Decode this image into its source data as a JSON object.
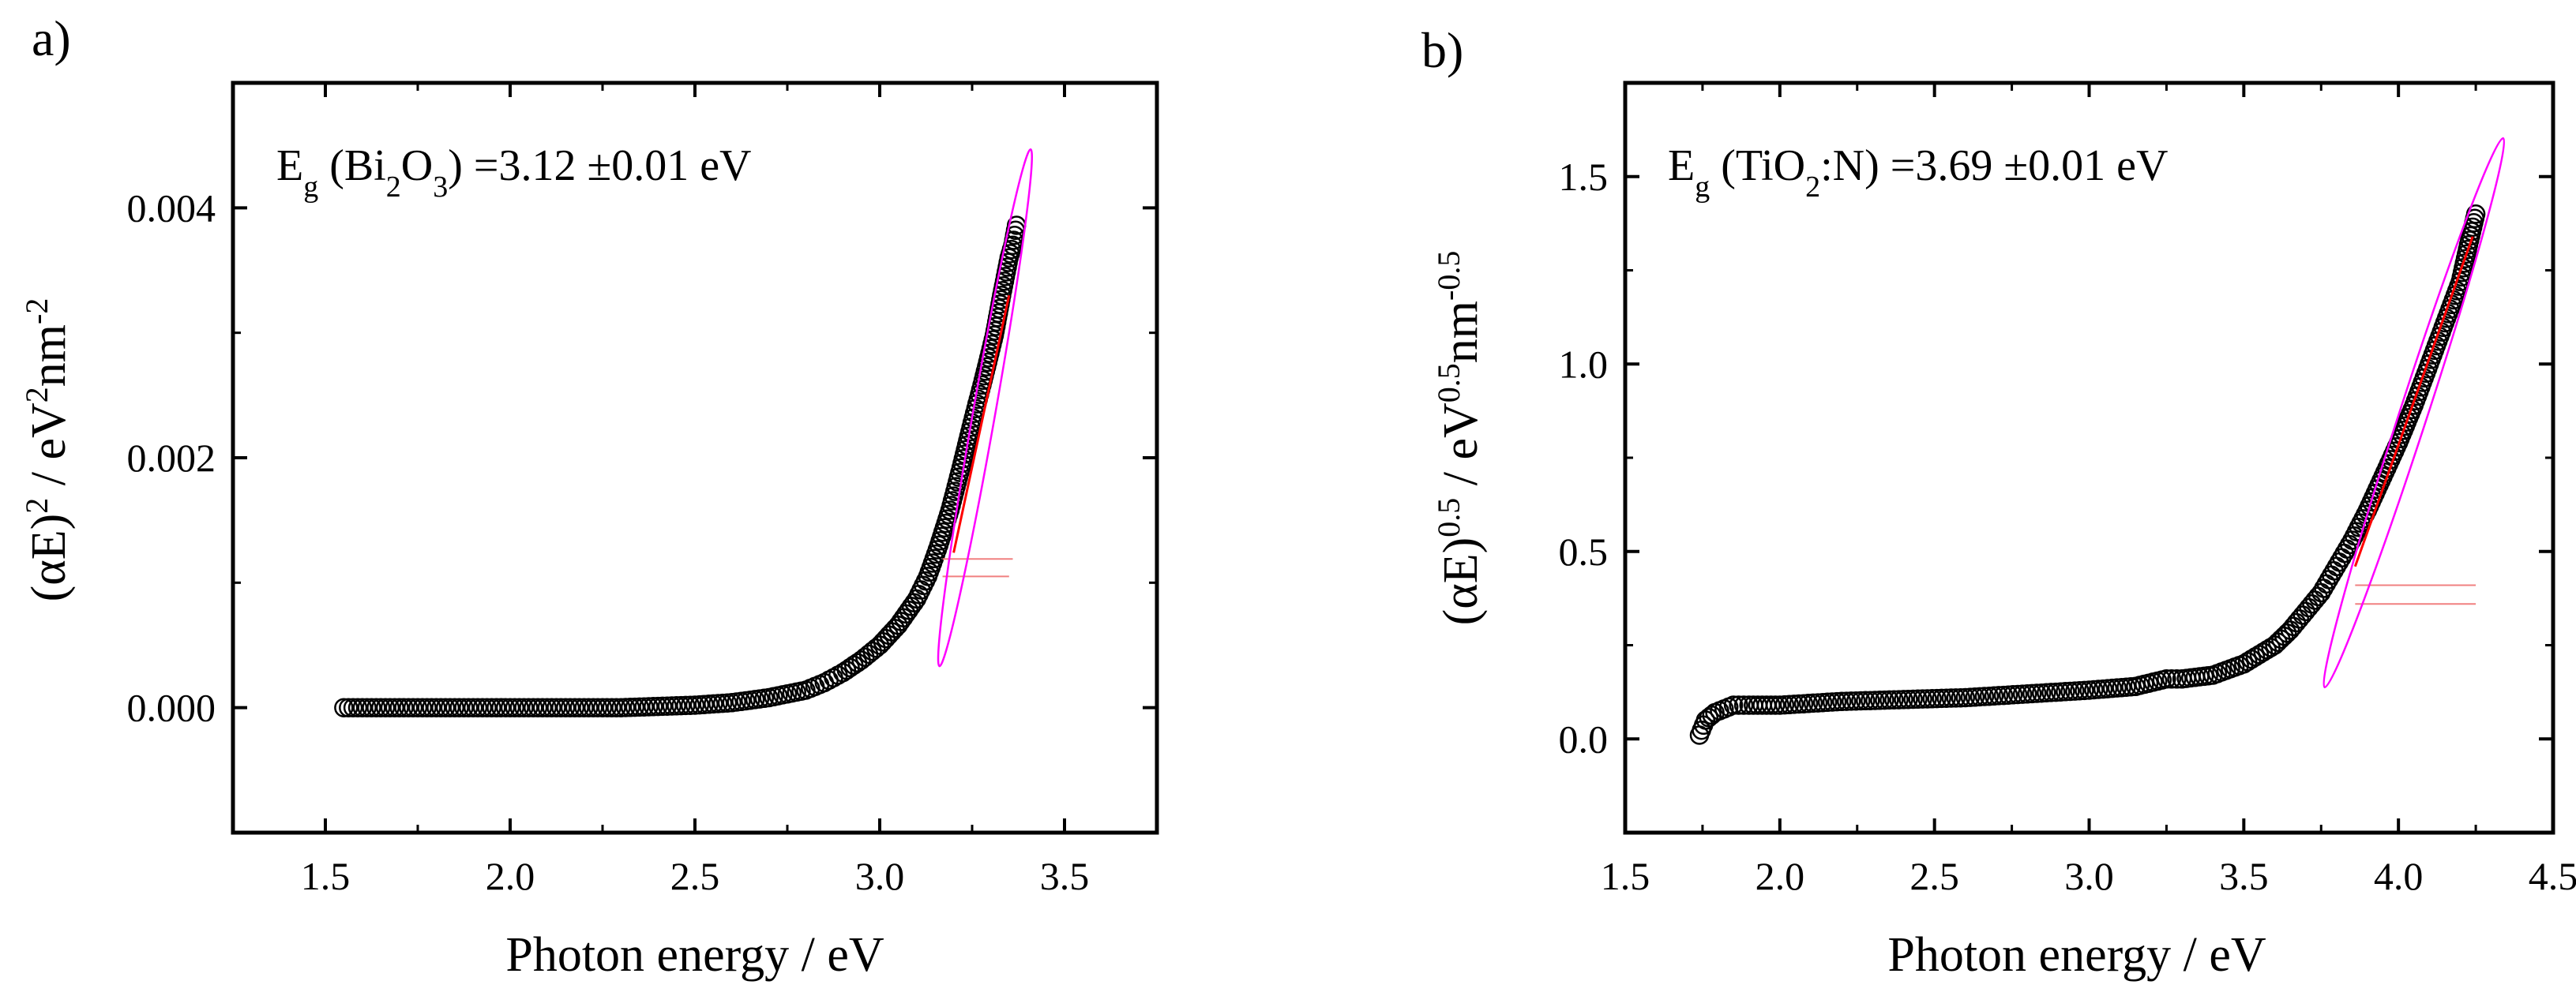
{
  "chart_data": [
    {
      "type": "scatter",
      "panel_label": "a)",
      "xlabel": "Photon energy / eV",
      "ylabel": {
        "main": "(αE)",
        "sup1": "2",
        "mid": " / eV",
        "sup2": "2",
        "after": "nm",
        "sup3": "-2"
      },
      "annotation": {
        "prefix": "E",
        "sub1": "g",
        "mid1": " (Bi",
        "sub2": "2",
        "mid2": "O",
        "sub3": "3",
        "suffix": ") =3.12 ±0.01 eV"
      },
      "xlim": [
        1.25,
        3.75
      ],
      "ylim": [
        -0.001,
        0.005
      ],
      "xticks": [
        1.5,
        2.0,
        2.5,
        3.0,
        3.5
      ],
      "xtick_labels": [
        "1.5",
        "2.0",
        "2.5",
        "3.0",
        "3.5"
      ],
      "yticks": [
        0.0,
        0.002,
        0.004
      ],
      "ytick_labels": [
        "0.000",
        "0.002",
        "0.004"
      ],
      "series": [
        {
          "name": "data",
          "x": [
            1.55,
            1.7,
            1.9,
            2.1,
            2.3,
            2.5,
            2.6,
            2.7,
            2.8,
            2.85,
            2.9,
            2.95,
            3.0,
            3.05,
            3.1,
            3.13,
            3.16,
            3.19,
            3.22,
            3.25,
            3.28,
            3.31,
            3.33,
            3.35,
            3.36,
            3.37
          ],
          "y": [
            0.0,
            0.0,
            0.0,
            0.0,
            0.0,
            2e-05,
            4e-05,
            8e-05,
            0.00014,
            0.0002,
            0.00028,
            0.00038,
            0.0005,
            0.00066,
            0.00087,
            0.00105,
            0.0013,
            0.00158,
            0.00192,
            0.00228,
            0.00262,
            0.00298,
            0.0033,
            0.0036,
            0.0037,
            0.00386
          ]
        }
      ],
      "fit_line": {
        "x": [
          3.2,
          3.35
        ],
        "y": [
          0.00124,
          0.0033
        ]
      },
      "ellipse": {
        "cx": 3.285,
        "cy": 0.0024,
        "rx": 0.03,
        "ry": 0.0021,
        "angle_deg": 10
      },
      "baseline_lines": [
        {
          "x": [
            3.17,
            3.36
          ],
          "y": [
            0.00119,
            0.00119
          ]
        },
        {
          "x": [
            3.17,
            3.35
          ],
          "y": [
            0.00105,
            0.00105
          ]
        }
      ]
    },
    {
      "type": "scatter",
      "panel_label": "b)",
      "xlabel": "Photon energy / eV",
      "ylabel": {
        "main": "(αE)",
        "sup1": "0.5",
        "mid": " / eV",
        "sup2": "0.5",
        "after": "nm",
        "sup3": "-0.5"
      },
      "annotation": {
        "prefix": "E",
        "sub1": "g",
        "mid1": " (TiO",
        "sub2": "2",
        "mid2": ":N)",
        "sub3": "",
        "suffix": " =3.69 ±0.01 eV"
      },
      "xlim": [
        1.5,
        4.5
      ],
      "ylim": [
        -0.25,
        1.75
      ],
      "xticks": [
        1.5,
        2.0,
        2.5,
        3.0,
        3.5,
        4.0,
        4.5
      ],
      "xtick_labels": [
        "1.5",
        "2.0",
        "2.5",
        "3.0",
        "3.5",
        "4.0",
        "4.5"
      ],
      "yticks": [
        0.0,
        0.5,
        1.0,
        1.5
      ],
      "ytick_labels": [
        "0.0",
        "0.5",
        "1.0",
        "1.5"
      ],
      "series": [
        {
          "name": "data",
          "x": [
            1.74,
            1.76,
            1.79,
            1.82,
            1.85,
            1.9,
            2.0,
            2.2,
            2.4,
            2.6,
            2.8,
            3.0,
            3.15,
            3.25,
            3.3,
            3.4,
            3.5,
            3.6,
            3.65,
            3.7,
            3.75,
            3.8,
            3.85,
            3.9,
            3.95,
            4.0,
            4.05,
            4.1,
            4.15,
            4.2,
            4.23,
            4.25
          ],
          "y": [
            0.01,
            0.05,
            0.07,
            0.08,
            0.09,
            0.09,
            0.09,
            0.1,
            0.105,
            0.11,
            0.12,
            0.13,
            0.14,
            0.16,
            0.16,
            0.17,
            0.2,
            0.25,
            0.29,
            0.34,
            0.39,
            0.46,
            0.53,
            0.61,
            0.7,
            0.79,
            0.89,
            1.0,
            1.11,
            1.22,
            1.33,
            1.4
          ]
        }
      ],
      "fit_line": {
        "x": [
          3.86,
          4.24
        ],
        "y": [
          0.46,
          1.34
        ]
      },
      "ellipse": {
        "cx": 4.05,
        "cy": 0.87,
        "rx": 0.045,
        "ry": 0.77,
        "angle_deg": 18
      },
      "baseline_lines": [
        {
          "x": [
            3.86,
            4.25
          ],
          "y": [
            0.41,
            0.41
          ]
        },
        {
          "x": [
            3.86,
            4.25
          ],
          "y": [
            0.36,
            0.36
          ]
        }
      ]
    }
  ]
}
